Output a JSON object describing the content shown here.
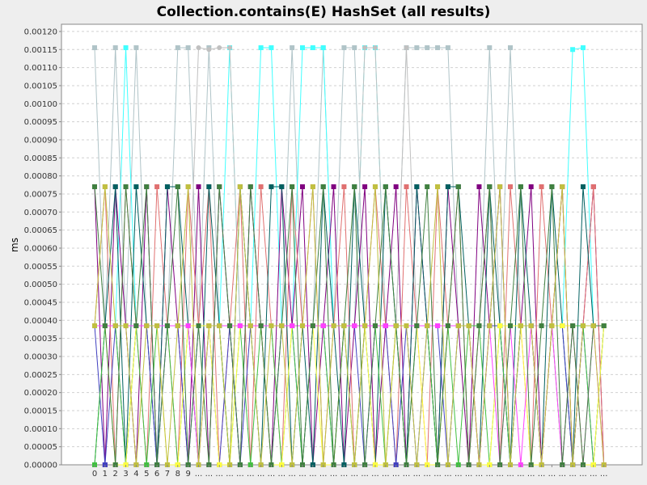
{
  "chart_data": {
    "type": "line",
    "title": "Collection.contains(E) HashSet (all results)",
    "xlabel": "",
    "ylabel": "ms",
    "ylim": [
      0,
      0.00122
    ],
    "yticks": [
      "0.00000",
      "0.00005",
      "0.00010",
      "0.00015",
      "0.00020",
      "0.00025",
      "0.00030",
      "0.00035",
      "0.00040",
      "0.00045",
      "0.00050",
      "0.00055",
      "0.00060",
      "0.00065",
      "0.00070",
      "0.00075",
      "0.00080",
      "0.00085",
      "0.00090",
      "0.00095",
      "0.00100",
      "0.00105",
      "0.00110",
      "0.00115",
      "0.00120"
    ],
    "categories": [
      "0",
      "1",
      "2",
      "3",
      "4",
      "5",
      "6",
      "7",
      "8",
      "9",
      "...",
      "...",
      "...",
      "...",
      "...",
      "...",
      "...",
      "...",
      "...",
      "...",
      "...",
      "...",
      "...",
      "...",
      "...",
      "...",
      "...",
      "...",
      "...",
      "...",
      "...",
      "...",
      "...",
      "...",
      "...",
      "...",
      "...",
      "...",
      "...",
      "...",
      "...",
      "...",
      "...",
      "...",
      "...",
      "...",
      "...",
      "...",
      "...",
      "..."
    ],
    "grid": true,
    "series": [
      {
        "color": "#b0c4c8",
        "values": [
          0.001155,
          0.000385,
          0.001155,
          0.000385,
          0.001155,
          0.000385,
          0.000385,
          0.000385,
          0.001155,
          0.001155,
          0.000385,
          0.001155,
          0.000385,
          0.000385,
          0.000385,
          0.000385,
          0.000385,
          0.000385,
          0.000385,
          0.001155,
          0.000385,
          0.000385,
          0.001155,
          0.000385,
          0.001155,
          0.001155,
          0.000385,
          0.000385,
          0.000385,
          0.000385,
          0.001155,
          0.001155,
          0.001155,
          0.001155,
          0.001155,
          0.000385,
          0.000385,
          0.000385,
          0.001155,
          0.000385,
          0.001155,
          0.000385,
          0.000385,
          0.000385,
          0.000385,
          0.000385,
          0.000385,
          0.000385,
          0.000385,
          0.000385
        ]
      },
      {
        "color": "#40ffff",
        "values": [
          0.000385,
          0.000385,
          0.000385,
          0.001155,
          0.000385,
          0.000385,
          0.000385,
          0.000385,
          0.000385,
          0.000385,
          0.000385,
          0.000385,
          0.000385,
          0.001155,
          0.000385,
          0.000385,
          0.001155,
          0.001155,
          0.000385,
          0.000385,
          0.001155,
          0.001155,
          0.001155,
          0.000385,
          0.000385,
          0.000385,
          0.001155,
          0.001155,
          0.000385,
          0.000385,
          0.000385,
          0.000385,
          0.000385,
          0.000385,
          0.000385,
          0.000385,
          0.000385,
          0.000385,
          0.000385,
          0.000385,
          0.000385,
          0.000385,
          0.000385,
          0.000385,
          0.000385,
          0.000385,
          0.00115,
          0.001155,
          0.000385,
          0.000385
        ]
      },
      {
        "color": "#c0c0c0",
        "values": [
          0.000385,
          0.000385,
          0.000385,
          0.000385,
          0.000385,
          0.000385,
          0.000385,
          0.000385,
          0.000385,
          0.000385,
          0.001155,
          0.00115,
          0.001155,
          0.001155,
          0.000385,
          0.000385,
          0.000385,
          0.000385,
          0.000385,
          0.000385,
          0.000385,
          0.000385,
          0.000385,
          0.000385,
          0.000385,
          0.000385,
          0.001155,
          0.001155,
          0.000385,
          0.000385,
          0.001155,
          0.000385,
          0.000385,
          0.000385,
          0.000385,
          0.000385,
          0.000385,
          0.000385,
          0.000385,
          0.000385,
          0.000385,
          0.000385,
          0.000385,
          0.000385,
          0.000385,
          0.000385,
          0.000385,
          0.000385,
          0.000385,
          0.000385
        ]
      },
      {
        "color": "#800080",
        "values": [
          0.00077,
          0.0,
          0.00077,
          0.000385,
          0.0,
          0.00077,
          0.0,
          0.00077,
          0.000385,
          0.0,
          0.00077,
          0.0,
          0.00077,
          0.000385,
          0.0,
          0.00077,
          0.000385,
          0.0,
          0.00077,
          0.000385,
          0.00077,
          0.0,
          0.000385,
          0.00077,
          0.0,
          0.000385,
          0.00077,
          0.0,
          0.000385,
          0.00077,
          0.0,
          0.00077,
          0.000385,
          0.0,
          0.00077,
          0.000385,
          0.0,
          0.00077,
          0.000385,
          0.00077,
          0.0,
          0.000385,
          0.00077,
          0.0,
          0.000385,
          0.00077,
          0.0,
          0.000385,
          0.00077,
          0.0
        ]
      },
      {
        "color": "#e07070",
        "values": [
          0.000385,
          0.00077,
          0.0,
          0.00077,
          0.000385,
          0.0,
          0.00077,
          0.000385,
          0.0,
          0.00077,
          0.000385,
          0.00077,
          0.0,
          0.000385,
          0.00077,
          0.0,
          0.00077,
          0.000385,
          0.0,
          0.00077,
          0.000385,
          0.00077,
          0.0,
          0.000385,
          0.00077,
          0.0,
          0.000385,
          0.00077,
          0.000385,
          0.0,
          0.00077,
          0.000385,
          0.0,
          0.00077,
          0.000385,
          0.00077,
          0.0,
          0.000385,
          0.00077,
          0.0,
          0.00077,
          0.000385,
          0.0,
          0.00077,
          0.000385,
          0.00077,
          0.0,
          0.000385,
          0.00077,
          0.0
        ]
      },
      {
        "color": "#006060",
        "values": [
          0.0,
          0.000385,
          0.00077,
          0.0,
          0.00077,
          0.000385,
          0.0,
          0.00077,
          0.00077,
          0.000385,
          0.0,
          0.00077,
          0.000385,
          0.0,
          0.00077,
          0.000385,
          0.0,
          0.00077,
          0.00077,
          0.0,
          0.000385,
          0.0,
          0.00077,
          0.000385,
          0.0,
          0.00077,
          0.000385,
          0.0,
          0.00077,
          0.000385,
          0.0,
          0.00077,
          0.000385,
          0.0,
          0.00077,
          0.00077,
          0.000385,
          0.0,
          0.00077,
          0.000385,
          0.0,
          0.00077,
          0.000385,
          0.0,
          0.00077,
          0.000385,
          0.0,
          0.00077,
          0.000385,
          0.000385
        ]
      },
      {
        "color": "#4040c0",
        "values": [
          0.000385,
          0.0,
          0.000385,
          0.0,
          0.000385,
          0.000385,
          0.0,
          0.000385,
          0.000385,
          0.0,
          0.000385,
          0.000385,
          0.0,
          0.000385,
          0.0,
          0.000385,
          0.000385,
          0.0,
          0.000385,
          0.000385,
          0.0,
          0.000385,
          0.000385,
          0.0,
          0.000385,
          0.000385,
          0.0,
          0.000385,
          0.000385,
          0.0,
          0.000385,
          0.0,
          0.000385,
          0.000385,
          0.0,
          0.000385,
          0.000385,
          0.0,
          0.000385,
          0.000385,
          0.0,
          0.000385,
          0.000385,
          0.0,
          0.000385,
          0.000385,
          0.0,
          0.000385,
          0.0,
          0.000385
        ]
      },
      {
        "color": "#40c040",
        "values": [
          0.0,
          0.000385,
          0.000385,
          0.0,
          0.000385,
          0.0,
          0.000385,
          0.000385,
          0.0,
          0.000385,
          0.0,
          0.000385,
          0.000385,
          0.0,
          0.000385,
          0.0,
          0.000385,
          0.000385,
          0.0,
          0.000385,
          0.0,
          0.000385,
          0.000385,
          0.0,
          0.000385,
          0.0,
          0.000385,
          0.000385,
          0.0,
          0.000385,
          0.0,
          0.000385,
          0.000385,
          0.0,
          0.000385,
          0.0,
          0.000385,
          0.000385,
          0.0,
          0.000385,
          0.0,
          0.000385,
          0.000385,
          0.0,
          0.000385,
          0.0,
          0.000385,
          0.000385,
          0.0,
          0.000385
        ]
      },
      {
        "color": "#ffff40",
        "values": [
          0.000385,
          0.000385,
          0.0,
          0.0,
          0.000385,
          0.000385,
          0.000385,
          0.0,
          0.0,
          0.000385,
          0.000385,
          0.000385,
          0.0,
          0.0,
          0.000385,
          0.000385,
          0.000385,
          0.0,
          0.0,
          0.000385,
          0.000385,
          0.000385,
          0.0,
          0.0,
          0.000385,
          0.000385,
          0.000385,
          0.0,
          0.0,
          0.000385,
          0.000385,
          0.000385,
          0.0,
          0.0,
          0.000385,
          0.000385,
          0.000385,
          0.0,
          0.0,
          0.000385,
          0.000385,
          0.000385,
          0.0,
          0.0,
          0.000385,
          0.000385,
          0.000385,
          0.0,
          0.0,
          0.000385
        ]
      },
      {
        "color": "#ff40ff",
        "values": [
          0.000385,
          0.000385,
          0.000385,
          0.000385,
          0.000385,
          0.000385,
          0.000385,
          0.000385,
          0.000385,
          0.000385,
          0.0,
          0.000385,
          0.000385,
          0.000385,
          0.000385,
          0.000385,
          0.000385,
          0.000385,
          0.000385,
          0.000385,
          0.000385,
          0.000385,
          0.000385,
          0.000385,
          0.000385,
          0.000385,
          0.000385,
          0.000385,
          0.000385,
          0.000385,
          0.000385,
          0.000385,
          0.000385,
          0.000385,
          0.000385,
          0.000385,
          0.000385,
          0.0,
          0.000385,
          0.0,
          0.000385,
          0.0,
          0.000385,
          0.0,
          0.000385,
          0.0,
          0.000385,
          0.0,
          0.000385,
          0.0
        ]
      },
      {
        "color": "#408040",
        "values": [
          0.00077,
          0.000385,
          0.0,
          0.00077,
          0.000385,
          0.00077,
          0.0,
          0.000385,
          0.00077,
          0.0,
          0.000385,
          0.0,
          0.00077,
          0.000385,
          0.0,
          0.00077,
          0.000385,
          0.0,
          0.000385,
          0.00077,
          0.0,
          0.000385,
          0.00077,
          0.0,
          0.000385,
          0.00077,
          0.0,
          0.000385,
          0.00077,
          0.000385,
          0.0,
          0.000385,
          0.00077,
          0.0,
          0.000385,
          0.00077,
          0.0,
          0.000385,
          0.00077,
          0.0,
          0.000385,
          0.00077,
          0.0,
          0.000385,
          0.00077,
          0.0,
          0.000385,
          0.0,
          0.000385,
          0.000385
        ]
      },
      {
        "color": "#c0c040",
        "values": [
          0.000385,
          0.00077,
          0.000385,
          0.000385,
          0.0,
          0.000385,
          0.000385,
          0.0,
          0.000385,
          0.00077,
          0.0,
          0.000385,
          0.000385,
          0.0,
          0.00077,
          0.000385,
          0.0,
          0.000385,
          0.000385,
          0.0,
          0.000385,
          0.00077,
          0.0,
          0.000385,
          0.000385,
          0.0,
          0.000385,
          0.00077,
          0.0,
          0.000385,
          0.000385,
          0.0,
          0.000385,
          0.00077,
          0.0,
          0.000385,
          0.000385,
          0.0,
          0.000385,
          0.00077,
          0.0,
          0.000385,
          0.000385,
          0.0,
          0.000385,
          0.00077,
          0.0,
          0.000385,
          0.000385,
          0.0
        ]
      }
    ]
  }
}
